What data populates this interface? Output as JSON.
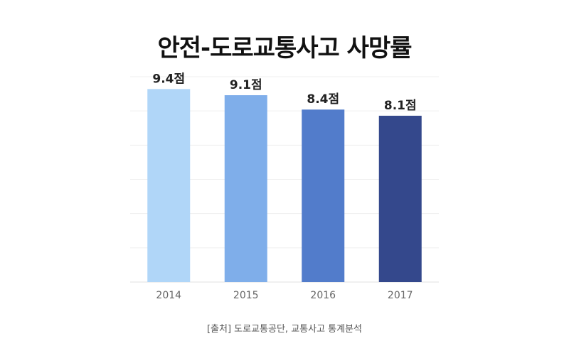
{
  "chart_data": {
    "type": "bar",
    "title": "안전-도로교통사고 사망률",
    "categories": [
      "2014",
      "2015",
      "2016",
      "2017"
    ],
    "values": [
      9.4,
      9.1,
      8.4,
      8.1
    ],
    "value_labels": [
      "9.4점",
      "9.1점",
      "8.4점",
      "8.1점"
    ],
    "colors": [
      "#b0d6f8",
      "#7faeea",
      "#527ccb",
      "#34488c"
    ],
    "ylim": [
      0,
      10
    ],
    "grid": true,
    "xlabel": "",
    "ylabel": ""
  },
  "source": "[출처] 도로교통공단, 교통사고 통계분석"
}
